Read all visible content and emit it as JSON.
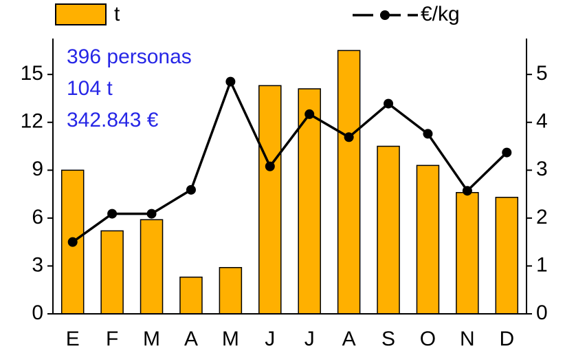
{
  "chart_data": {
    "type": "bar_line",
    "categories": [
      "E",
      "F",
      "M",
      "A",
      "M",
      "J",
      "J",
      "A",
      "S",
      "O",
      "N",
      "D"
    ],
    "series": [
      {
        "name": "t",
        "color": "#ffb000",
        "values": [
          9.0,
          5.2,
          5.9,
          2.3,
          2.9,
          14.3,
          14.1,
          16.5,
          10.5,
          9.3,
          7.6,
          7.3
        ]
      },
      {
        "name": "€/kg",
        "color": "#000000",
        "axis": "y2",
        "values": [
          1.5,
          2.09,
          2.09,
          2.59,
          4.85,
          3.08,
          4.17,
          3.69,
          4.39,
          3.76,
          2.57,
          3.37
        ]
      }
    ],
    "annotations": [
      "396 personas",
      "104 t",
      "342.843 €"
    ],
    "ylim": [
      0,
      17.25
    ],
    "yticks": [
      0,
      3,
      6,
      9,
      12,
      15
    ],
    "y2lim": [
      0,
      5.75
    ],
    "y2ticks": [
      0,
      1,
      2,
      3,
      4,
      5
    ]
  }
}
